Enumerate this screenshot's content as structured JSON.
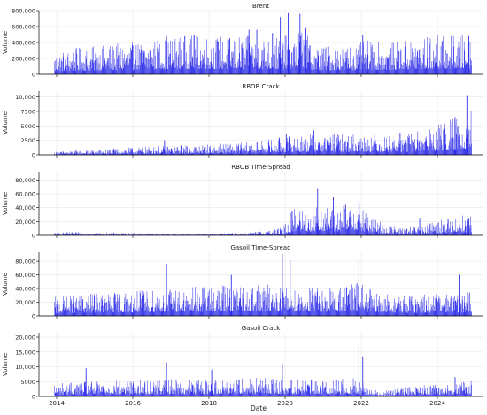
{
  "x_ticks": [
    "2014",
    "2016",
    "2018",
    "2020",
    "2022",
    "2024"
  ],
  "xlabel": "Date",
  "colors": {
    "bars": "#1a1ae6",
    "grid": "#e6e6e6",
    "axis": "#000000"
  },
  "chart_data": [
    {
      "type": "bar",
      "title": "Brent",
      "ylabel": "Volume",
      "y_ticks": [
        "0",
        "200,000",
        "400,000",
        "600,000",
        "800,000"
      ],
      "ylim": [
        0,
        800000
      ],
      "xlim": [
        2013.6,
        2024.9
      ],
      "grid": true,
      "series": [
        {
          "x_range": [
            2014.0,
            2024.62
          ],
          "points": [
            [
              2014.0,
              150000
            ],
            [
              2014.5,
              180000
            ],
            [
              2015.0,
              190000
            ],
            [
              2015.5,
              210000
            ],
            [
              2016.0,
              220000
            ],
            [
              2016.5,
              240000
            ],
            [
              2017.0,
              260000
            ],
            [
              2017.5,
              270000
            ],
            [
              2018.0,
              270000
            ],
            [
              2018.5,
              260000
            ],
            [
              2019.0,
              260000
            ],
            [
              2019.5,
              250000
            ],
            [
              2020.0,
              270000
            ],
            [
              2020.3,
              330000
            ],
            [
              2020.6,
              200000
            ],
            [
              2021.0,
              200000
            ],
            [
              2021.5,
              210000
            ],
            [
              2022.0,
              230000
            ],
            [
              2022.5,
              210000
            ],
            [
              2023.0,
              240000
            ],
            [
              2023.5,
              260000
            ],
            [
              2024.0,
              270000
            ],
            [
              2024.62,
              280000
            ]
          ],
          "spikes": [
            [
              2016.85,
              480000
            ],
            [
              2017.55,
              500000
            ],
            [
              2018.95,
              560000
            ],
            [
              2019.15,
              560000
            ],
            [
              2019.55,
              520000
            ],
            [
              2019.75,
              720000
            ],
            [
              2019.95,
              770000
            ],
            [
              2020.25,
              760000
            ],
            [
              2020.4,
              580000
            ],
            [
              2021.85,
              500000
            ],
            [
              2023.15,
              500000
            ],
            [
              2023.75,
              490000
            ],
            [
              2024.55,
              480000
            ]
          ]
        }
      ]
    },
    {
      "type": "bar",
      "title": "RBOB Crack",
      "ylabel": "Volume",
      "y_ticks": [
        "0",
        "2500",
        "5000",
        "7500",
        "10,000"
      ],
      "ylim": [
        0,
        11000
      ],
      "xlim": [
        2013.6,
        2024.9
      ],
      "grid": true,
      "series": [
        {
          "x_range": [
            2014.0,
            2024.62
          ],
          "points": [
            [
              2014.0,
              300
            ],
            [
              2015.0,
              500
            ],
            [
              2016.0,
              700
            ],
            [
              2017.0,
              900
            ],
            [
              2018.0,
              1000
            ],
            [
              2019.0,
              1200
            ],
            [
              2020.0,
              1800
            ],
            [
              2021.0,
              2000
            ],
            [
              2022.0,
              2000
            ],
            [
              2022.5,
              1800
            ],
            [
              2023.0,
              2000
            ],
            [
              2023.5,
              2600
            ],
            [
              2024.0,
              3200
            ],
            [
              2024.62,
              4500
            ]
          ],
          "spikes": [
            [
              2016.8,
              2500
            ],
            [
              2019.9,
              3500
            ],
            [
              2020.6,
              4200
            ],
            [
              2022.8,
              3800
            ],
            [
              2024.2,
              6500
            ],
            [
              2024.5,
              10300
            ]
          ]
        }
      ]
    },
    {
      "type": "bar",
      "title": "RBOB Time-Spread",
      "ylabel": "Volume",
      "y_ticks": [
        "0",
        "20,000",
        "40,000",
        "60,000",
        "80,000"
      ],
      "ylim": [
        0,
        92000
      ],
      "xlim": [
        2013.6,
        2024.9
      ],
      "grid": true,
      "series": [
        {
          "x_range": [
            2014.0,
            2024.62
          ],
          "points": [
            [
              2014.0,
              2500
            ],
            [
              2015.0,
              2500
            ],
            [
              2016.0,
              2000
            ],
            [
              2017.0,
              1500
            ],
            [
              2018.0,
              1500
            ],
            [
              2019.0,
              2500
            ],
            [
              2019.8,
              6000
            ],
            [
              2020.1,
              22000
            ],
            [
              2020.5,
              20000
            ],
            [
              2020.8,
              25000
            ],
            [
              2021.2,
              20000
            ],
            [
              2021.6,
              30000
            ],
            [
              2022.0,
              16000
            ],
            [
              2022.5,
              8000
            ],
            [
              2023.0,
              6000
            ],
            [
              2023.5,
              9000
            ],
            [
              2024.0,
              14000
            ],
            [
              2024.62,
              17000
            ]
          ],
          "spikes": [
            [
              2020.05,
              35000
            ],
            [
              2020.7,
              67000
            ],
            [
              2021.1,
              55000
            ],
            [
              2021.75,
              50000
            ],
            [
              2023.3,
              25000
            ],
            [
              2024.55,
              25000
            ]
          ]
        }
      ]
    },
    {
      "type": "bar",
      "title": "Gasoil Time-Spread",
      "ylabel": "Volume",
      "y_ticks": [
        "0",
        "20,000",
        "40,000",
        "60,000",
        "80,000"
      ],
      "ylim": [
        0,
        93000
      ],
      "xlim": [
        2013.6,
        2024.9
      ],
      "grid": true,
      "series": [
        {
          "x_range": [
            2014.0,
            2024.62
          ],
          "points": [
            [
              2014.0,
              15000
            ],
            [
              2015.0,
              18000
            ],
            [
              2016.0,
              20000
            ],
            [
              2017.0,
              22000
            ],
            [
              2018.0,
              24000
            ],
            [
              2019.0,
              25000
            ],
            [
              2020.0,
              25000
            ],
            [
              2021.0,
              23000
            ],
            [
              2021.8,
              28000
            ],
            [
              2022.2,
              18000
            ],
            [
              2023.0,
              17000
            ],
            [
              2024.0,
              19000
            ],
            [
              2024.62,
              20000
            ]
          ],
          "spikes": [
            [
              2016.85,
              76000
            ],
            [
              2018.5,
              60000
            ],
            [
              2019.8,
              90000
            ],
            [
              2020.0,
              82000
            ],
            [
              2021.75,
              80000
            ],
            [
              2024.3,
              60000
            ]
          ]
        }
      ]
    },
    {
      "type": "bar",
      "title": "Gasoil Crack",
      "ylabel": "Volume",
      "y_ticks": [
        "0",
        "5000",
        "10,000",
        "15,000",
        "20,000"
      ],
      "ylim": [
        0,
        21500
      ],
      "xlim": [
        2013.6,
        2024.9
      ],
      "grid": true,
      "series": [
        {
          "x_range": [
            2014.0,
            2024.62
          ],
          "points": [
            [
              2014.0,
              2500
            ],
            [
              2015.0,
              2800
            ],
            [
              2016.0,
              3000
            ],
            [
              2017.0,
              3200
            ],
            [
              2018.0,
              3200
            ],
            [
              2019.0,
              3500
            ],
            [
              2020.0,
              3200
            ],
            [
              2021.0,
              3000
            ],
            [
              2021.7,
              3500
            ],
            [
              2022.0,
              1500
            ],
            [
              2022.5,
              1200
            ],
            [
              2023.0,
              1800
            ],
            [
              2024.0,
              2500
            ],
            [
              2024.62,
              2800
            ]
          ],
          "spikes": [
            [
              2014.8,
              9500
            ],
            [
              2016.85,
              11500
            ],
            [
              2018.0,
              9000
            ],
            [
              2019.8,
              11000
            ],
            [
              2021.75,
              17500
            ],
            [
              2021.85,
              13500
            ],
            [
              2024.2,
              6500
            ]
          ]
        }
      ]
    }
  ]
}
